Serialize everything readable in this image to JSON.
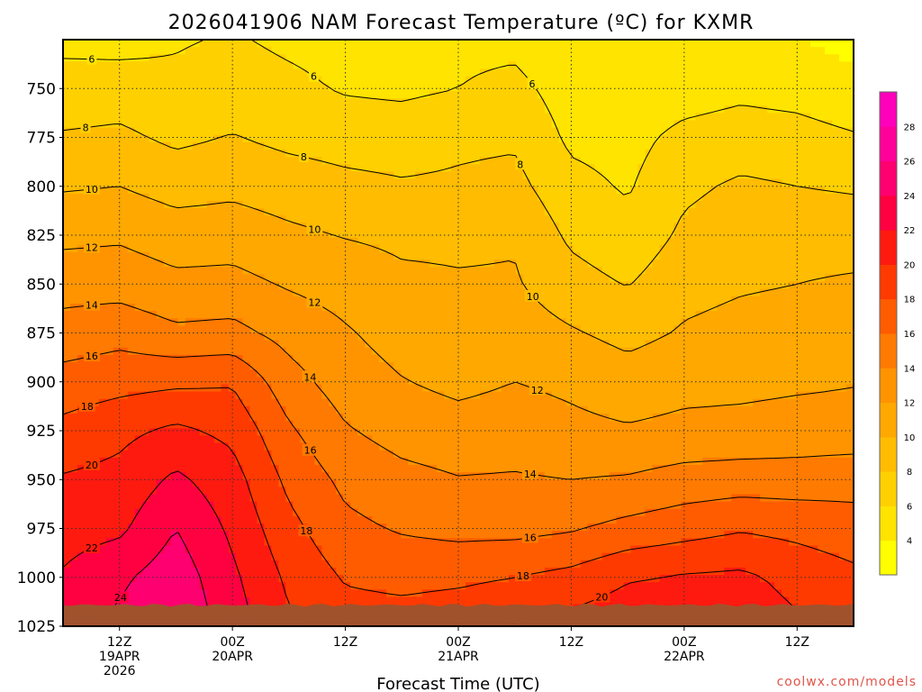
{
  "chart_data": {
    "type": "heatmap",
    "title": "2026041906 NAM Forecast Temperature (ºC) for KXMR",
    "xlabel": "Forecast Time (UTC)",
    "ylabel": "",
    "credit": "coolwx.com/models",
    "y_axis": {
      "reversed": true,
      "ylim": [
        1025,
        725
      ],
      "ticks": [
        750,
        775,
        800,
        825,
        850,
        875,
        900,
        925,
        950,
        975,
        1000,
        1025
      ]
    },
    "x_axis": {
      "xlim_hours": [
        0,
        84
      ],
      "ticks": [
        {
          "hour": 6,
          "lines": [
            "12Z",
            "19APR",
            "2026"
          ]
        },
        {
          "hour": 18,
          "lines": [
            "00Z",
            "20APR"
          ]
        },
        {
          "hour": 30,
          "lines": [
            "12Z"
          ]
        },
        {
          "hour": 42,
          "lines": [
            "00Z",
            "21APR"
          ]
        },
        {
          "hour": 54,
          "lines": [
            "12Z"
          ]
        },
        {
          "hour": 66,
          "lines": [
            "00Z",
            "22APR"
          ]
        },
        {
          "hour": 78,
          "lines": [
            "12Z"
          ]
        }
      ]
    },
    "grid": true,
    "colorbar": {
      "placement": "right",
      "levels": [
        2,
        4,
        6,
        8,
        10,
        12,
        14,
        16,
        18,
        20,
        22,
        24,
        26,
        28,
        30
      ],
      "labels": [
        4,
        6,
        8,
        10,
        12,
        14,
        16,
        18,
        20,
        22,
        24,
        26,
        28
      ],
      "colors": [
        "#ffff00",
        "#ffe400",
        "#ffd000",
        "#ffbc00",
        "#ffa800",
        "#ff9400",
        "#ff7a00",
        "#ff5c00",
        "#ff3a00",
        "#ff1a10",
        "#ff0040",
        "#ff0070",
        "#ff0099",
        "#ff00bb"
      ]
    },
    "contour_levels": [
      6,
      8,
      10,
      12,
      14,
      16,
      18,
      20,
      22,
      24
    ],
    "hours": [
      0,
      6,
      12,
      18,
      24,
      30,
      36,
      42,
      48,
      54,
      60,
      66,
      72,
      78,
      84
    ],
    "pressure": [
      725,
      750,
      775,
      800,
      825,
      850,
      875,
      900,
      925,
      950,
      975,
      1000,
      1025
    ],
    "temperature_c": [
      [
        5.5,
        5.3,
        5.8,
        6.2,
        5.6,
        5.2,
        5.2,
        5.5,
        5.4,
        4.2,
        4.0,
        4.2,
        4.6,
        4.0,
        3.5
      ],
      [
        6.8,
        7.0,
        6.5,
        7.0,
        6.5,
        5.8,
        5.6,
        6.0,
        6.6,
        5.0,
        4.5,
        5.0,
        5.5,
        5.2,
        4.5
      ],
      [
        8.2,
        8.4,
        7.6,
        8.1,
        7.5,
        7.2,
        7.1,
        7.6,
        7.7,
        5.6,
        5.3,
        6.6,
        7.0,
        6.8,
        6.2
      ],
      [
        9.8,
        10.0,
        9.2,
        9.5,
        9.0,
        8.5,
        8.2,
        8.3,
        8.6,
        6.6,
        5.8,
        7.6,
        8.3,
        8.0,
        7.8
      ],
      [
        11.5,
        11.7,
        11.0,
        11.1,
        10.4,
        9.9,
        9.6,
        9.6,
        9.8,
        7.6,
        6.6,
        8.4,
        9.1,
        9.1,
        9.0
      ],
      [
        13.2,
        13.2,
        12.5,
        12.6,
        11.8,
        11.2,
        10.4,
        10.2,
        10.2,
        8.8,
        7.9,
        9.4,
        9.8,
        10.0,
        10.3
      ],
      [
        14.8,
        15.3,
        14.4,
        14.6,
        13.3,
        12.2,
        11.2,
        10.4,
        11.0,
        10.2,
        9.4,
        10.2,
        10.6,
        10.8,
        11.0
      ],
      [
        16.8,
        17.3,
        17.6,
        17.8,
        14.8,
        13.0,
        12.1,
        11.5,
        12.0,
        11.6,
        10.9,
        11.4,
        11.5,
        11.7,
        11.9
      ],
      [
        18.6,
        19.5,
        20.4,
        19.5,
        16.3,
        14.2,
        13.2,
        12.8,
        13.0,
        12.5,
        12.2,
        12.5,
        12.6,
        12.8,
        12.8
      ],
      [
        20.2,
        20.6,
        22.4,
        20.8,
        17.5,
        15.5,
        14.6,
        14.1,
        14.2,
        14.0,
        14.2,
        14.8,
        15.0,
        15.0,
        15.3
      ],
      [
        21.2,
        21.6,
        24.0,
        21.6,
        18.6,
        16.5,
        15.8,
        15.4,
        15.4,
        15.8,
        16.6,
        17.2,
        17.8,
        17.4,
        16.8
      ],
      [
        22.2,
        23.6,
        25.2,
        22.4,
        19.6,
        17.8,
        17.4,
        17.6,
        18.0,
        18.6,
        19.8,
        20.2,
        20.4,
        19.4,
        18.5
      ],
      [
        23.0,
        24.5,
        25.8,
        23.0,
        20.3,
        19.0,
        19.0,
        19.4,
        20.1,
        20.8,
        21.4,
        21.6,
        21.2,
        20.3,
        19.6
      ]
    ]
  }
}
